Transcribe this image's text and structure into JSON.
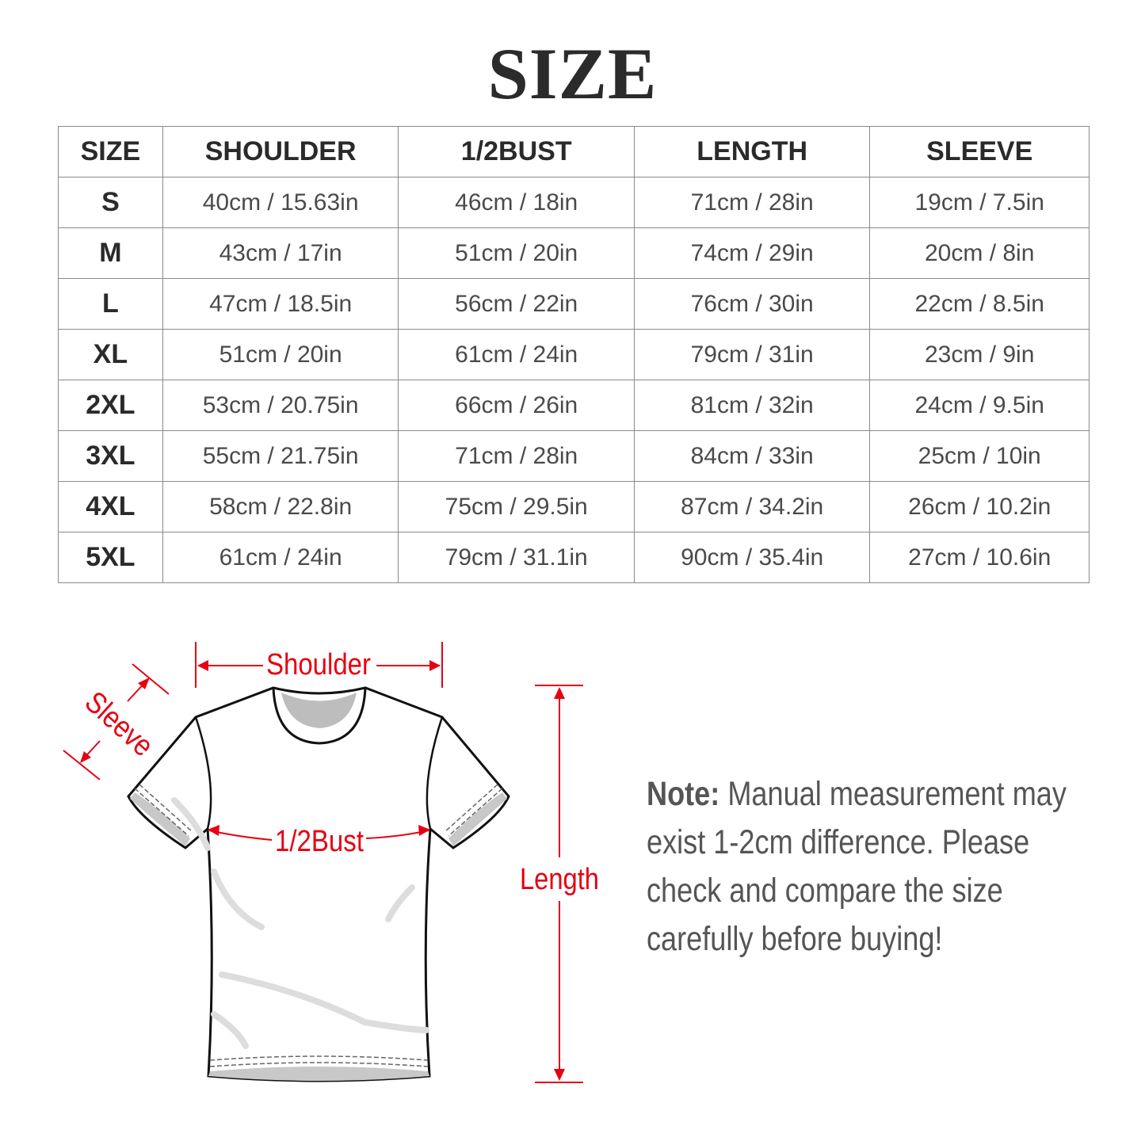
{
  "title": "SIZE",
  "table": {
    "headers": [
      "SIZE",
      "SHOULDER",
      "1/2BUST",
      "LENGTH",
      "SLEEVE"
    ],
    "rows": [
      [
        "S",
        "40cm / 15.63in",
        "46cm / 18in",
        "71cm / 28in",
        "19cm / 7.5in"
      ],
      [
        "M",
        "43cm / 17in",
        "51cm / 20in",
        "74cm / 29in",
        "20cm / 8in"
      ],
      [
        "L",
        "47cm / 18.5in",
        "56cm / 22in",
        "76cm / 30in",
        "22cm / 8.5in"
      ],
      [
        "XL",
        "51cm / 20in",
        "61cm / 24in",
        "79cm / 31in",
        "23cm / 9in"
      ],
      [
        "2XL",
        "53cm / 20.75in",
        "66cm / 26in",
        "81cm / 32in",
        "24cm / 9.5in"
      ],
      [
        "3XL",
        "55cm / 21.75in",
        "71cm / 28in",
        "84cm / 33in",
        "25cm / 10in"
      ],
      [
        "4XL",
        "58cm / 22.8in",
        "75cm / 29.5in",
        "87cm / 34.2in",
        "26cm / 10.2in"
      ],
      [
        "5XL",
        "61cm / 24in",
        "79cm / 31.1in",
        "90cm / 35.4in",
        "27cm / 10.6in"
      ]
    ]
  },
  "diagram": {
    "shoulder": "Shoulder",
    "sleeve": "Sleeve",
    "bust": "1/2Bust",
    "length": "Length",
    "accent_color": "#e60012"
  },
  "note": {
    "label": "Note:",
    "lines": [
      "Manual measurement may",
      "exist 1-2cm difference. Please",
      "check and compare the size",
      "carefully before buying!"
    ]
  }
}
